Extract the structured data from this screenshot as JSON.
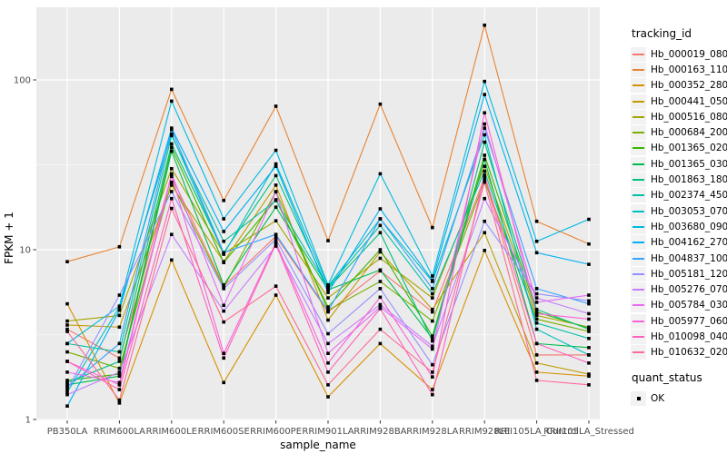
{
  "chart_data": {
    "type": "line",
    "title": "",
    "xlabel": "sample_name",
    "ylabel": "FPKM + 1",
    "y_scale": "log10",
    "ylim": [
      1,
      260
    ],
    "y_ticks": [
      1,
      10,
      100
    ],
    "y_tick_labels": [
      "1",
      "10",
      "100"
    ],
    "y_minor_ticks": [
      3.162,
      31.62
    ],
    "grid": true,
    "legend_position": "right",
    "legend_title": "tracking_id",
    "marker": "black-square",
    "marker_legend": {
      "title": "quant_status",
      "items": [
        {
          "label": "OK"
        }
      ]
    },
    "panel_bg": "#EBEBEB",
    "grid_color": "#FFFFFF",
    "axis_text_color": "#4D4D4D",
    "point_color": "#000000",
    "legend_key_bg": "#F2F2F2",
    "categories": [
      "PB350LA",
      "RRIM600LA",
      "RRIM600LE",
      "RRIM600SE",
      "RRIM600PE",
      "RRIM901LA",
      "RRIM928BA",
      "RRIM928LA",
      "RRIM928LE",
      "RRII105LA_Control",
      "RRII105LA_Stressed"
    ],
    "series": [
      {
        "name": "Hb_000019_080",
        "color": "#F8766D",
        "values": [
          3.4,
          2.3,
          27,
          6.1,
          12,
          4.3,
          7.5,
          4.3,
          26.5,
          2.4,
          2.4
        ]
      },
      {
        "name": "Hb_000163_110",
        "color": "#EA8331",
        "values": [
          8.5,
          10.4,
          88,
          19.5,
          70,
          11.3,
          72,
          13.5,
          210,
          14.7,
          10.8
        ]
      },
      {
        "name": "Hb_000352_280",
        "color": "#D89000",
        "values": [
          4.8,
          1.25,
          8.7,
          1.65,
          5.4,
          1.36,
          2.8,
          1.5,
          9.9,
          1.9,
          1.8
        ]
      },
      {
        "name": "Hb_000441_050",
        "color": "#C09B00",
        "values": [
          3.6,
          3.5,
          24,
          8.5,
          24,
          3.85,
          9.7,
          4.45,
          12.6,
          2.15,
          1.85
        ]
      },
      {
        "name": "Hb_000516_080",
        "color": "#A3A500",
        "values": [
          3.8,
          4.1,
          30,
          9.5,
          14.8,
          5.2,
          8.9,
          5.2,
          31,
          4.1,
          3.5
        ]
      },
      {
        "name": "Hb_000684_200",
        "color": "#7CAE00",
        "values": [
          2.5,
          2.0,
          25,
          6.0,
          22,
          4.4,
          6.5,
          3.8,
          25.5,
          3.9,
          3.3
        ]
      },
      {
        "name": "Hb_001365_020",
        "color": "#39B600",
        "values": [
          1.7,
          1.85,
          40,
          8.4,
          19.7,
          4.6,
          10,
          3.1,
          36,
          4.3,
          3.45
        ]
      },
      {
        "name": "Hb_001365_030",
        "color": "#00BB4E",
        "values": [
          1.6,
          1.8,
          38,
          6.2,
          17.8,
          5.8,
          7.6,
          3.0,
          34,
          2.8,
          2.65
        ]
      },
      {
        "name": "Hb_001863_180",
        "color": "#00BF7D",
        "values": [
          1.65,
          2.2,
          42,
          9.6,
          27.3,
          5.9,
          12.6,
          2.9,
          43,
          4.45,
          3.4
        ]
      },
      {
        "name": "Hb_002374_450",
        "color": "#00C1A3",
        "values": [
          2.8,
          2.5,
          47,
          11.2,
          19.5,
          6.0,
          13.9,
          5.5,
          29,
          3.7,
          3.0
        ]
      },
      {
        "name": "Hb_003053_070",
        "color": "#00BFC4",
        "values": [
          1.45,
          4.6,
          48,
          9.4,
          32,
          6.1,
          15.2,
          6.5,
          47.5,
          3.4,
          2.4
        ]
      },
      {
        "name": "Hb_003680_090",
        "color": "#00BAE0",
        "values": [
          2.8,
          4.65,
          75,
          15.2,
          38.5,
          6.2,
          28,
          7.0,
          98,
          11.2,
          15.1
        ]
      },
      {
        "name": "Hb_004162_270",
        "color": "#00B0F6",
        "values": [
          1.2,
          4.4,
          52,
          12.8,
          31,
          5.6,
          17.4,
          6.6,
          82,
          9.6,
          8.2
        ]
      },
      {
        "name": "Hb_004837_100",
        "color": "#35A2FF",
        "values": [
          1.55,
          2.8,
          51,
          9.6,
          12.3,
          4.35,
          15.2,
          5.9,
          52,
          5.9,
          4.8
        ]
      },
      {
        "name": "Hb_005181_120",
        "color": "#9590FF",
        "values": [
          1.5,
          5.4,
          22,
          5.9,
          11.5,
          3.2,
          5.9,
          2.1,
          14.7,
          5.5,
          5.0
        ]
      },
      {
        "name": "Hb_005276_070",
        "color": "#C77CFF",
        "values": [
          1.4,
          1.9,
          12.3,
          4.35,
          10.5,
          2.8,
          4.75,
          2.7,
          20,
          5.2,
          4.2
        ]
      },
      {
        "name": "Hb_005784_030",
        "color": "#E76BF3",
        "values": [
          1.9,
          1.65,
          28,
          4.7,
          21.9,
          2.45,
          4.6,
          2.6,
          55,
          4.9,
          5.4
        ]
      },
      {
        "name": "Hb_005977_060",
        "color": "#FA62DB",
        "values": [
          2.2,
          1.6,
          27.5,
          2.45,
          11,
          2.15,
          5.25,
          1.78,
          64,
          4.2,
          3.9
        ]
      },
      {
        "name": "Hb_010098_040",
        "color": "#FF62BC",
        "values": [
          2.2,
          1.5,
          20,
          2.3,
          10.8,
          1.9,
          4.5,
          1.4,
          27.5,
          2.8,
          2.15
        ]
      },
      {
        "name": "Hb_010632_020",
        "color": "#FF6A98",
        "values": [
          3.3,
          1.3,
          17.5,
          3.75,
          6.1,
          1.6,
          3.4,
          1.9,
          25,
          1.7,
          1.6
        ]
      }
    ]
  }
}
